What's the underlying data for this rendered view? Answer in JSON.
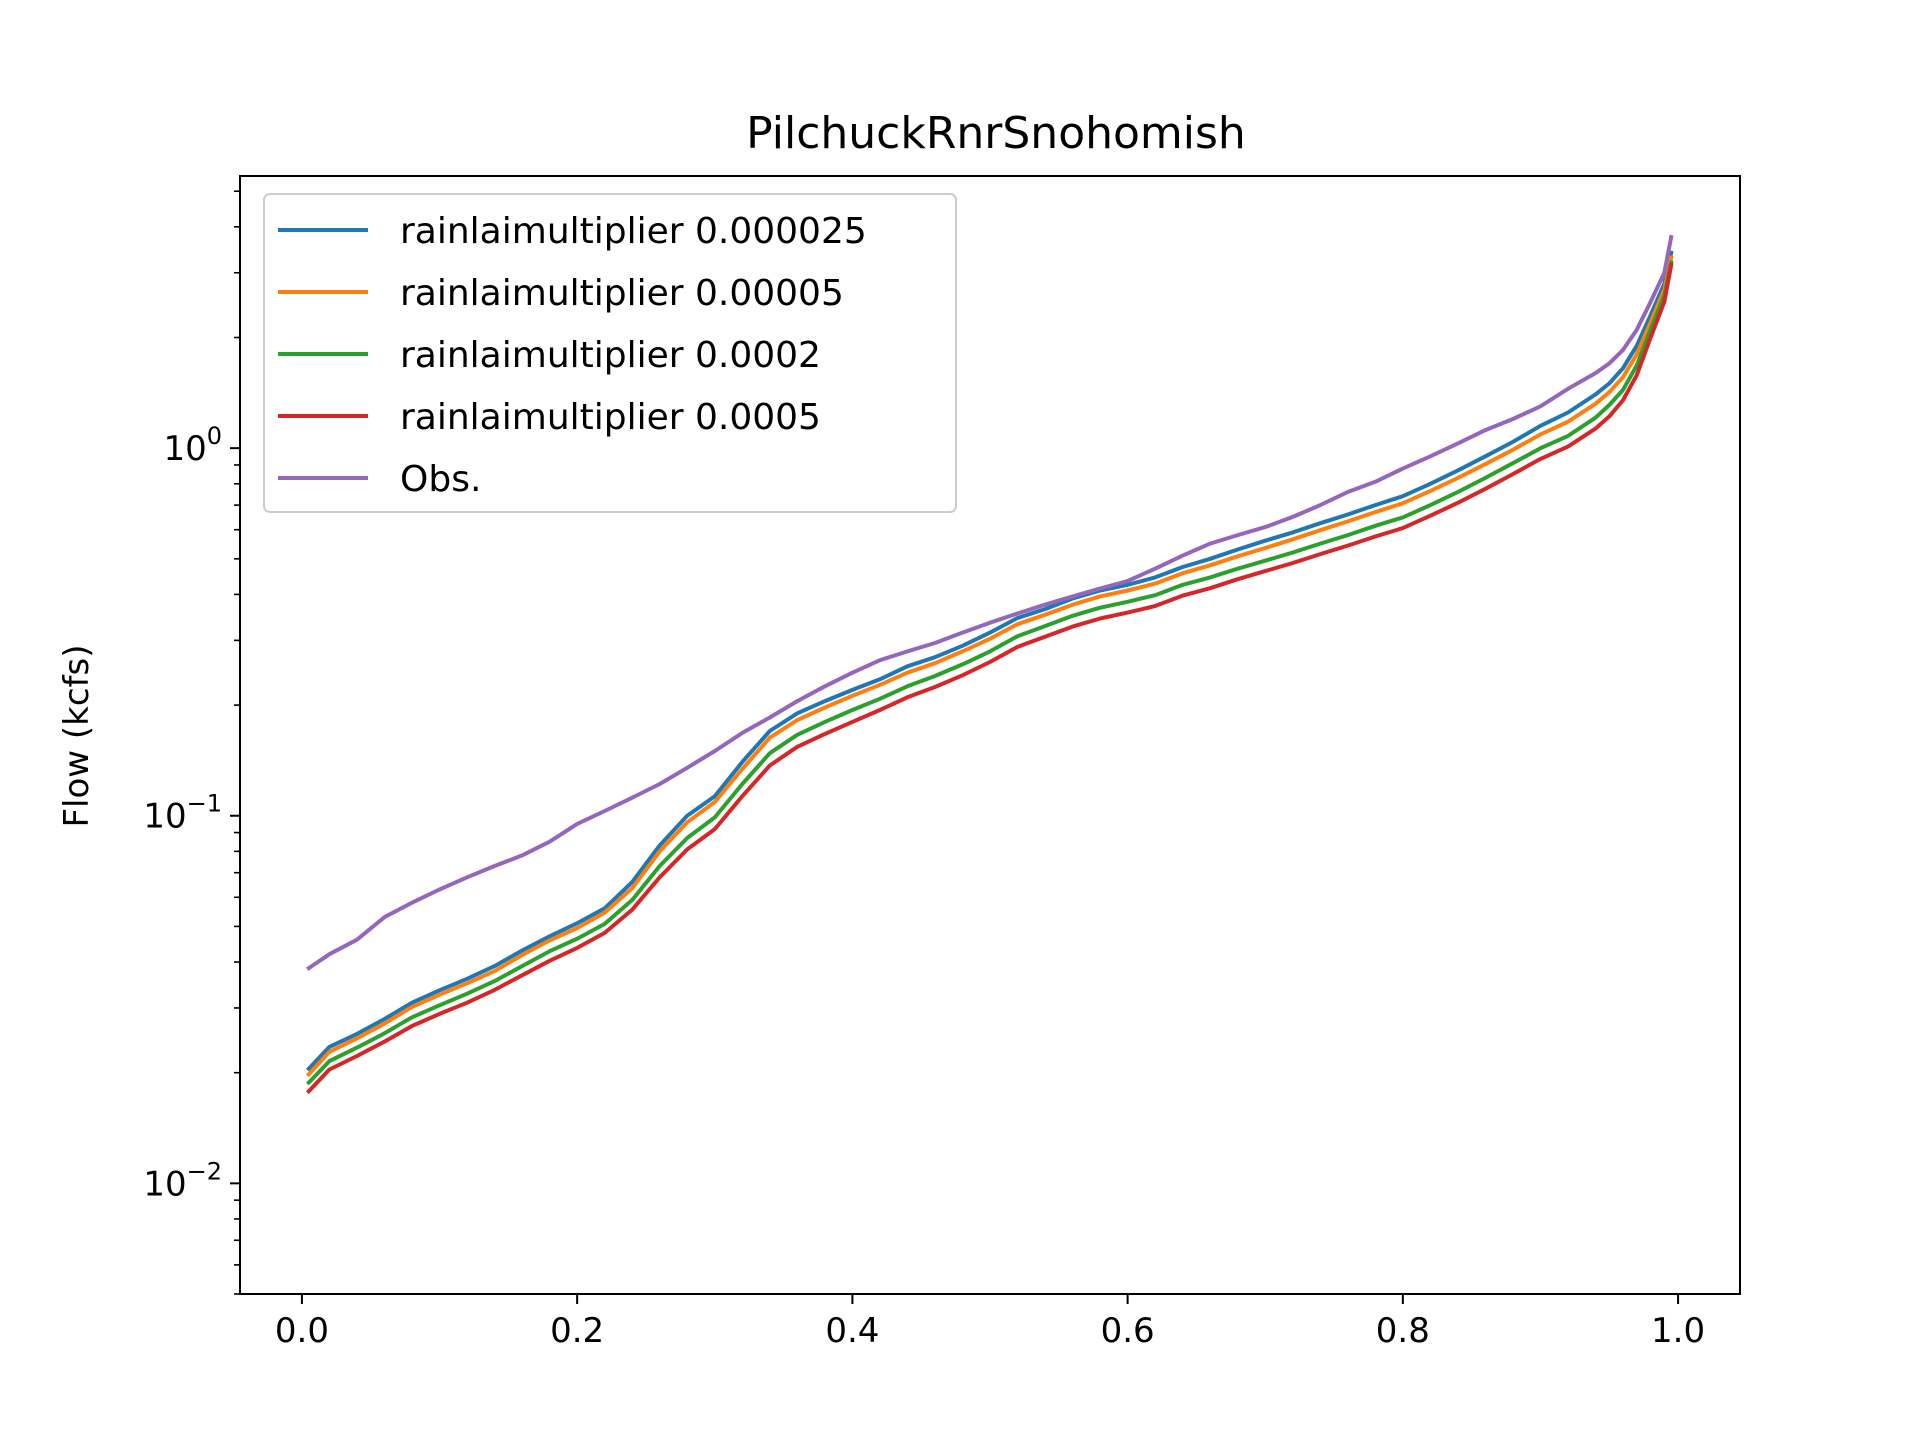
{
  "chart_data": {
    "type": "line",
    "title": "PilchuckRnrSnohomish",
    "xlabel": "",
    "ylabel": "Flow (kcfs)",
    "xlim": [
      -0.045,
      1.045
    ],
    "ylim": [
      0.005,
      5.5
    ],
    "yscale": "log",
    "grid": false,
    "legend_position": "upper left",
    "x_ticks": [
      {
        "value": 0.0,
        "label": "0.0"
      },
      {
        "value": 0.2,
        "label": "0.2"
      },
      {
        "value": 0.4,
        "label": "0.4"
      },
      {
        "value": 0.6,
        "label": "0.6"
      },
      {
        "value": 0.8,
        "label": "0.8"
      },
      {
        "value": 1.0,
        "label": "1.0"
      }
    ],
    "y_ticks": [
      {
        "value": 0.01,
        "base": "10",
        "exp": "−2"
      },
      {
        "value": 0.1,
        "base": "10",
        "exp": "−1"
      },
      {
        "value": 1,
        "base": "10",
        "exp": "0"
      }
    ],
    "series": [
      {
        "name": "rainlaimultiplier 0.000025",
        "color": "#1f77b4",
        "x": [
          0.005,
          0.02,
          0.04,
          0.06,
          0.08,
          0.1,
          0.12,
          0.14,
          0.16,
          0.18,
          0.2,
          0.22,
          0.24,
          0.26,
          0.28,
          0.3,
          0.32,
          0.34,
          0.36,
          0.38,
          0.4,
          0.42,
          0.44,
          0.46,
          0.48,
          0.5,
          0.52,
          0.54,
          0.56,
          0.58,
          0.6,
          0.62,
          0.64,
          0.66,
          0.68,
          0.7,
          0.72,
          0.74,
          0.76,
          0.78,
          0.8,
          0.82,
          0.84,
          0.86,
          0.88,
          0.9,
          0.92,
          0.94,
          0.95,
          0.96,
          0.97,
          0.98,
          0.99,
          0.995
        ],
        "y": [
          0.0205,
          0.0235,
          0.0255,
          0.028,
          0.031,
          0.0335,
          0.036,
          0.039,
          0.043,
          0.047,
          0.051,
          0.056,
          0.066,
          0.083,
          0.1,
          0.113,
          0.14,
          0.17,
          0.19,
          0.205,
          0.22,
          0.235,
          0.255,
          0.27,
          0.29,
          0.315,
          0.345,
          0.365,
          0.39,
          0.41,
          0.425,
          0.445,
          0.475,
          0.5,
          0.53,
          0.56,
          0.59,
          0.625,
          0.66,
          0.7,
          0.74,
          0.8,
          0.87,
          0.95,
          1.04,
          1.15,
          1.25,
          1.4,
          1.5,
          1.65,
          1.9,
          2.3,
          2.8,
          3.4
        ]
      },
      {
        "name": "rainlaimultiplier 0.00005",
        "color": "#ff7f0e",
        "x": [
          0.005,
          0.02,
          0.04,
          0.06,
          0.08,
          0.1,
          0.12,
          0.14,
          0.16,
          0.18,
          0.2,
          0.22,
          0.24,
          0.26,
          0.28,
          0.3,
          0.32,
          0.34,
          0.36,
          0.38,
          0.4,
          0.42,
          0.44,
          0.46,
          0.48,
          0.5,
          0.52,
          0.54,
          0.56,
          0.58,
          0.6,
          0.62,
          0.64,
          0.66,
          0.68,
          0.7,
          0.72,
          0.74,
          0.76,
          0.78,
          0.8,
          0.82,
          0.84,
          0.86,
          0.88,
          0.9,
          0.92,
          0.94,
          0.95,
          0.96,
          0.97,
          0.98,
          0.99,
          0.995
        ],
        "y": [
          0.0198,
          0.0228,
          0.0248,
          0.0272,
          0.0302,
          0.0326,
          0.035,
          0.0378,
          0.0418,
          0.0458,
          0.0495,
          0.0545,
          0.0635,
          0.08,
          0.096,
          0.109,
          0.134,
          0.163,
          0.182,
          0.197,
          0.212,
          0.227,
          0.245,
          0.26,
          0.28,
          0.303,
          0.332,
          0.352,
          0.375,
          0.395,
          0.41,
          0.428,
          0.457,
          0.48,
          0.508,
          0.535,
          0.565,
          0.598,
          0.632,
          0.67,
          0.708,
          0.765,
          0.83,
          0.905,
          0.99,
          1.09,
          1.18,
          1.32,
          1.42,
          1.56,
          1.8,
          2.2,
          2.7,
          3.3
        ]
      },
      {
        "name": "rainlaimultiplier 0.0002",
        "color": "#2ca02c",
        "x": [
          0.005,
          0.02,
          0.04,
          0.06,
          0.08,
          0.1,
          0.12,
          0.14,
          0.16,
          0.18,
          0.2,
          0.22,
          0.24,
          0.26,
          0.28,
          0.3,
          0.32,
          0.34,
          0.36,
          0.38,
          0.4,
          0.42,
          0.44,
          0.46,
          0.48,
          0.5,
          0.52,
          0.54,
          0.56,
          0.58,
          0.6,
          0.62,
          0.64,
          0.66,
          0.68,
          0.7,
          0.72,
          0.74,
          0.76,
          0.78,
          0.8,
          0.82,
          0.84,
          0.86,
          0.88,
          0.9,
          0.92,
          0.94,
          0.95,
          0.96,
          0.97,
          0.98,
          0.99,
          0.995
        ],
        "y": [
          0.0188,
          0.0215,
          0.0234,
          0.0256,
          0.0283,
          0.0305,
          0.0328,
          0.0355,
          0.039,
          0.0428,
          0.0463,
          0.0508,
          0.059,
          0.073,
          0.087,
          0.099,
          0.122,
          0.148,
          0.166,
          0.18,
          0.194,
          0.208,
          0.225,
          0.24,
          0.258,
          0.28,
          0.308,
          0.328,
          0.35,
          0.368,
          0.382,
          0.398,
          0.425,
          0.445,
          0.47,
          0.494,
          0.52,
          0.55,
          0.58,
          0.615,
          0.648,
          0.7,
          0.76,
          0.83,
          0.91,
          1.0,
          1.08,
          1.21,
          1.31,
          1.44,
          1.68,
          2.1,
          2.6,
          3.2
        ]
      },
      {
        "name": "rainlaimultiplier 0.0005",
        "color": "#d62728",
        "x": [
          0.005,
          0.02,
          0.04,
          0.06,
          0.08,
          0.1,
          0.12,
          0.14,
          0.16,
          0.18,
          0.2,
          0.22,
          0.24,
          0.26,
          0.28,
          0.3,
          0.32,
          0.34,
          0.36,
          0.38,
          0.4,
          0.42,
          0.44,
          0.46,
          0.48,
          0.5,
          0.52,
          0.54,
          0.56,
          0.58,
          0.6,
          0.62,
          0.64,
          0.66,
          0.68,
          0.7,
          0.72,
          0.74,
          0.76,
          0.78,
          0.8,
          0.82,
          0.84,
          0.86,
          0.88,
          0.9,
          0.92,
          0.94,
          0.95,
          0.96,
          0.97,
          0.98,
          0.99,
          0.995
        ],
        "y": [
          0.0178,
          0.0204,
          0.0222,
          0.0243,
          0.0268,
          0.0289,
          0.031,
          0.0336,
          0.0368,
          0.0403,
          0.0437,
          0.048,
          0.0555,
          0.068,
          0.081,
          0.092,
          0.113,
          0.137,
          0.154,
          0.167,
          0.18,
          0.194,
          0.21,
          0.224,
          0.241,
          0.262,
          0.288,
          0.307,
          0.327,
          0.344,
          0.357,
          0.372,
          0.397,
          0.416,
          0.44,
          0.463,
          0.487,
          0.515,
          0.543,
          0.575,
          0.606,
          0.655,
          0.71,
          0.775,
          0.85,
          0.935,
          1.01,
          1.13,
          1.22,
          1.35,
          1.58,
          2.0,
          2.5,
          3.15
        ]
      },
      {
        "name": "Obs.",
        "color": "#9467bd",
        "x": [
          0.005,
          0.02,
          0.04,
          0.06,
          0.08,
          0.1,
          0.12,
          0.14,
          0.16,
          0.18,
          0.2,
          0.22,
          0.24,
          0.26,
          0.28,
          0.3,
          0.32,
          0.34,
          0.36,
          0.38,
          0.4,
          0.42,
          0.44,
          0.46,
          0.48,
          0.5,
          0.52,
          0.54,
          0.56,
          0.58,
          0.6,
          0.62,
          0.64,
          0.66,
          0.68,
          0.7,
          0.72,
          0.74,
          0.76,
          0.78,
          0.8,
          0.82,
          0.84,
          0.86,
          0.88,
          0.9,
          0.92,
          0.94,
          0.95,
          0.96,
          0.97,
          0.98,
          0.99,
          0.995
        ],
        "y": [
          0.0385,
          0.042,
          0.046,
          0.053,
          0.058,
          0.063,
          0.068,
          0.073,
          0.078,
          0.085,
          0.095,
          0.103,
          0.112,
          0.122,
          0.135,
          0.15,
          0.168,
          0.185,
          0.205,
          0.225,
          0.245,
          0.265,
          0.28,
          0.295,
          0.315,
          0.335,
          0.355,
          0.375,
          0.395,
          0.415,
          0.435,
          0.47,
          0.51,
          0.55,
          0.58,
          0.61,
          0.65,
          0.7,
          0.76,
          0.81,
          0.88,
          0.95,
          1.03,
          1.12,
          1.2,
          1.3,
          1.45,
          1.6,
          1.7,
          1.85,
          2.1,
          2.5,
          3.0,
          3.75
        ]
      }
    ]
  }
}
